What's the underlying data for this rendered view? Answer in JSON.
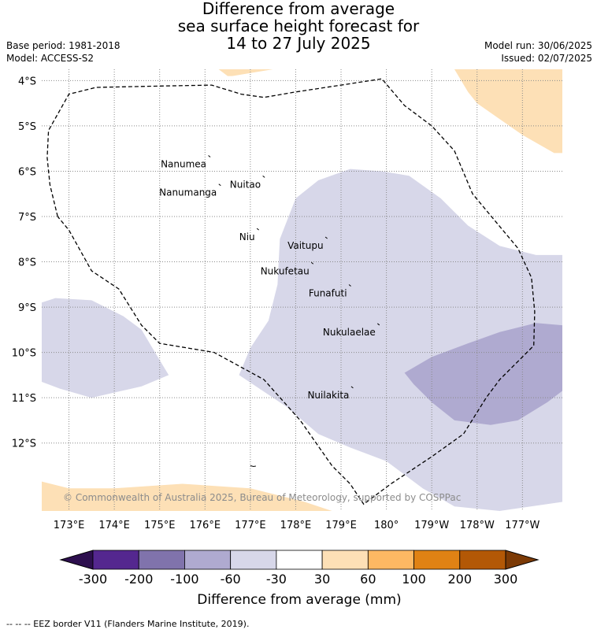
{
  "title": {
    "line1": "Difference from average",
    "line2": "sea surface height forecast for",
    "line3": "14 to 27 July 2025"
  },
  "meta": {
    "base_period": "Base period: 1981-2018",
    "model": "Model: ACCESS-S2",
    "model_run": "Model run: 30/06/2025",
    "issued": "Issued: 02/07/2025"
  },
  "map": {
    "lon_range": [
      172.4,
      183.88
    ],
    "lat_range": [
      -13.5,
      -3.75
    ],
    "lon_ticks": [
      {
        "value": 173,
        "label": "173°E"
      },
      {
        "value": 174,
        "label": "174°E"
      },
      {
        "value": 175,
        "label": "175°E"
      },
      {
        "value": 176,
        "label": "176°E"
      },
      {
        "value": 177,
        "label": "177°E"
      },
      {
        "value": 178,
        "label": "178°E"
      },
      {
        "value": 179,
        "label": "179°E"
      },
      {
        "value": 180,
        "label": "180°"
      },
      {
        "value": 181,
        "label": "179°W"
      },
      {
        "value": 182,
        "label": "178°W"
      },
      {
        "value": 183,
        "label": "177°W"
      }
    ],
    "lat_ticks": [
      {
        "value": -4,
        "label": "4°S"
      },
      {
        "value": -5,
        "label": "5°S"
      },
      {
        "value": -6,
        "label": "6°S"
      },
      {
        "value": -7,
        "label": "7°S"
      },
      {
        "value": -8,
        "label": "8°S"
      },
      {
        "value": -9,
        "label": "9°S"
      },
      {
        "value": -10,
        "label": "10°S"
      },
      {
        "value": -11,
        "label": "11°S"
      },
      {
        "value": -12,
        "label": "12°S"
      }
    ],
    "places": [
      {
        "name": "Nanumea",
        "lon": 176.1,
        "lat": -5.67
      },
      {
        "name": "Nuitao",
        "lon": 177.3,
        "lat": -6.12
      },
      {
        "name": "Nanumanga",
        "lon": 176.33,
        "lat": -6.3
      },
      {
        "name": "Niu",
        "lon": 177.17,
        "lat": -7.28
      },
      {
        "name": "Vaitupu",
        "lon": 178.68,
        "lat": -7.47
      },
      {
        "name": "Nukufetau",
        "lon": 178.37,
        "lat": -8.03
      },
      {
        "name": "Funafuti",
        "lon": 179.2,
        "lat": -8.52
      },
      {
        "name": "Nukulaelae",
        "lon": 179.83,
        "lat": -9.38
      },
      {
        "name": "Nuilakita",
        "lon": 179.25,
        "lat": -10.77
      }
    ],
    "regions": [
      {
        "class": "-60 to -30",
        "color": "#d7d7e9",
        "points": [
          [
            177.65,
            -7.5
          ],
          [
            178.0,
            -6.6
          ],
          [
            178.5,
            -6.2
          ],
          [
            179.2,
            -5.95
          ],
          [
            179.9,
            -6.0
          ],
          [
            180.5,
            -6.1
          ],
          [
            181.2,
            -6.6
          ],
          [
            181.8,
            -7.2
          ],
          [
            182.5,
            -7.65
          ],
          [
            183.3,
            -7.85
          ],
          [
            183.88,
            -7.85
          ],
          [
            183.88,
            -13.3
          ],
          [
            182.5,
            -13.5
          ],
          [
            181.5,
            -13.4
          ],
          [
            180.8,
            -13.0
          ],
          [
            180.0,
            -12.4
          ],
          [
            179.2,
            -12.1
          ],
          [
            178.5,
            -11.8
          ],
          [
            177.8,
            -11.2
          ],
          [
            177.2,
            -10.8
          ],
          [
            176.75,
            -10.5
          ],
          [
            177.0,
            -9.9
          ],
          [
            177.4,
            -9.3
          ],
          [
            177.6,
            -8.5
          ]
        ]
      },
      {
        "class": "-60 to -30",
        "color": "#d7d7e9",
        "points": [
          [
            172.4,
            -8.9
          ],
          [
            172.7,
            -8.8
          ],
          [
            173.5,
            -8.85
          ],
          [
            174.2,
            -9.2
          ],
          [
            174.6,
            -9.5
          ],
          [
            174.9,
            -10.0
          ],
          [
            175.2,
            -10.5
          ],
          [
            174.6,
            -10.75
          ],
          [
            173.5,
            -11.0
          ],
          [
            172.8,
            -10.8
          ],
          [
            172.4,
            -10.65
          ]
        ]
      },
      {
        "class": "-100 to -60",
        "color": "#afaad0",
        "points": [
          [
            180.4,
            -10.45
          ],
          [
            181.0,
            -10.1
          ],
          [
            181.8,
            -9.8
          ],
          [
            182.5,
            -9.55
          ],
          [
            183.3,
            -9.35
          ],
          [
            183.88,
            -9.4
          ],
          [
            183.88,
            -10.85
          ],
          [
            183.55,
            -11.1
          ],
          [
            182.9,
            -11.5
          ],
          [
            182.3,
            -11.6
          ],
          [
            181.5,
            -11.5
          ],
          [
            181.0,
            -11.1
          ],
          [
            180.6,
            -10.7
          ]
        ]
      },
      {
        "class": "30 to 60",
        "color": "#fde0b6",
        "points": [
          [
            181.5,
            -3.75
          ],
          [
            183.88,
            -3.75
          ],
          [
            183.88,
            -5.6
          ],
          [
            183.7,
            -5.6
          ],
          [
            183.0,
            -5.2
          ],
          [
            182.0,
            -4.5
          ],
          [
            181.8,
            -4.25
          ]
        ]
      },
      {
        "class": "30 to 60",
        "color": "#fde0b6",
        "points": [
          [
            176.3,
            -3.75
          ],
          [
            177.5,
            -3.75
          ],
          [
            176.6,
            -3.9
          ],
          [
            176.5,
            -3.9
          ]
        ]
      },
      {
        "class": "30 to 60",
        "color": "#fde0b6",
        "points": [
          [
            172.4,
            -12.85
          ],
          [
            173.0,
            -13.0
          ],
          [
            174.0,
            -13.0
          ],
          [
            175.5,
            -12.9
          ],
          [
            177.0,
            -13.0
          ],
          [
            178.2,
            -13.3
          ],
          [
            178.8,
            -13.5
          ],
          [
            172.4,
            -13.5
          ]
        ]
      }
    ],
    "eez_border": [
      [
        172.75,
        -7.0
      ],
      [
        172.58,
        -6.3
      ],
      [
        172.52,
        -5.7
      ],
      [
        172.55,
        -5.1
      ],
      [
        173.0,
        -4.3
      ],
      [
        173.6,
        -4.15
      ],
      [
        175.0,
        -4.12
      ],
      [
        176.15,
        -4.1
      ],
      [
        176.8,
        -4.3
      ],
      [
        177.3,
        -4.37
      ],
      [
        178.0,
        -4.25
      ],
      [
        179.0,
        -4.1
      ],
      [
        179.9,
        -3.96
      ],
      [
        180.4,
        -4.55
      ],
      [
        181.0,
        -5.0
      ],
      [
        181.5,
        -5.55
      ],
      [
        181.9,
        -6.5
      ],
      [
        182.4,
        -7.1
      ],
      [
        182.9,
        -7.7
      ],
      [
        183.2,
        -8.35
      ],
      [
        183.27,
        -9.1
      ],
      [
        183.25,
        -9.85
      ],
      [
        182.5,
        -10.6
      ],
      [
        182.2,
        -11.0
      ],
      [
        181.7,
        -11.8
      ],
      [
        181.0,
        -12.3
      ],
      [
        180.1,
        -12.9
      ],
      [
        179.5,
        -13.35
      ],
      [
        179.2,
        -12.9
      ],
      [
        178.8,
        -12.5
      ],
      [
        178.1,
        -11.5
      ],
      [
        177.3,
        -10.6
      ],
      [
        176.2,
        -10.0
      ],
      [
        175.0,
        -9.8
      ],
      [
        174.6,
        -9.4
      ],
      [
        174.1,
        -8.6
      ],
      [
        173.5,
        -8.2
      ],
      [
        173.0,
        -7.3
      ],
      [
        172.75,
        -7.0
      ]
    ],
    "copyright": "© Commonwealth of Australia 2025, Bureau of Meteorology, supported by COSPPac"
  },
  "colorbar": {
    "label": "Difference from average (mm)",
    "under_color": "#2d0f4e",
    "over_color": "#7c3a06",
    "bins": [
      {
        "color": "#54278f"
      },
      {
        "color": "#8073ac"
      },
      {
        "color": "#afaad0"
      },
      {
        "color": "#d7d7e9"
      },
      {
        "color": "#ffffff"
      },
      {
        "color": "#fde0b6"
      },
      {
        "color": "#fdb863"
      },
      {
        "color": "#e08214"
      },
      {
        "color": "#b35806"
      }
    ],
    "tick_labels": [
      "-300",
      "-200",
      "-100",
      "-60",
      "-30",
      "30",
      "60",
      "100",
      "200",
      "300"
    ]
  },
  "footer": "-- -- -- EEZ border V11 (Flanders Marine Institute, 2019)."
}
